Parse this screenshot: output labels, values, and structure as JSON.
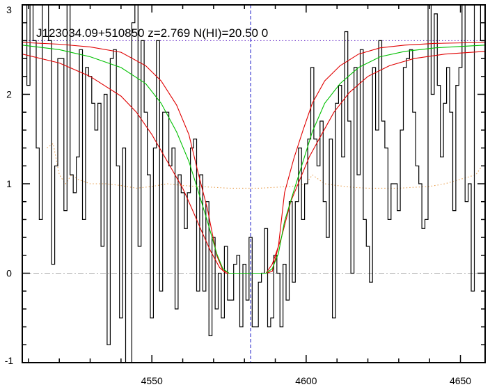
{
  "chart_data": {
    "type": "line",
    "title": "J123034.09+510850 z=2.769 N(HI)=20.50 0",
    "xlabel": "",
    "ylabel": "",
    "xlim": [
      4508,
      4658
    ],
    "ylim": [
      -1,
      3
    ],
    "x_ticks": [
      4550,
      4600,
      4650
    ],
    "y_ticks": [
      -1,
      0,
      1,
      2,
      3
    ],
    "continuum_level": 2.6,
    "zero_level": 0,
    "line_center": 4582,
    "series": [
      {
        "role": "flux",
        "style": "step",
        "color": "#000000",
        "x": [
          4509.0,
          4510.0,
          4511.0,
          4512.0,
          4513.0,
          4514.0,
          4515.0,
          4516.0,
          4517.0,
          4518.0,
          4519.0,
          4520.0,
          4521.0,
          4522.0,
          4523.0,
          4524.0,
          4525.0,
          4526.0,
          4527.0,
          4528.0,
          4529.0,
          4530.0,
          4531.0,
          4532.0,
          4533.0,
          4534.0,
          4535.0,
          4536.0,
          4537.0,
          4538.0,
          4539.0,
          4540.0,
          4541.0,
          4542.0,
          4543.0,
          4544.0,
          4545.0,
          4546.0,
          4547.0,
          4548.0,
          4549.0,
          4550.0,
          4551.0,
          4552.0,
          4553.0,
          4554.0,
          4555.0,
          4556.0,
          4557.0,
          4558.0,
          4559.0,
          4560.0,
          4561.0,
          4562.0,
          4563.0,
          4564.0,
          4565.0,
          4566.0,
          4567.0,
          4568.0,
          4569.0,
          4570.0,
          4571.0,
          4572.0,
          4573.0,
          4574.0,
          4575.0,
          4576.0,
          4577.0,
          4578.0,
          4579.0,
          4580.0,
          4581.0,
          4582.0,
          4583.0,
          4584.0,
          4585.0,
          4586.0,
          4587.0,
          4588.0,
          4589.0,
          4590.0,
          4591.0,
          4592.0,
          4593.0,
          4594.0,
          4595.0,
          4596.0,
          4597.0,
          4598.0,
          4599.0,
          4600.0,
          4601.0,
          4602.0,
          4603.0,
          4604.0,
          4605.0,
          4606.0,
          4607.0,
          4608.0,
          4609.0,
          4610.0,
          4611.0,
          4612.0,
          4613.0,
          4614.0,
          4615.0,
          4616.0,
          4617.0,
          4618.0,
          4619.0,
          4620.0,
          4621.0,
          4622.0,
          4623.0,
          4624.0,
          4625.0,
          4626.0,
          4627.0,
          4628.0,
          4629.0,
          4630.0,
          4631.0,
          4632.0,
          4633.0,
          4634.0,
          4635.0,
          4636.0,
          4637.0,
          4638.0,
          4639.0,
          4640.0,
          4641.0,
          4642.0,
          4643.0,
          4644.0,
          4645.0,
          4646.0,
          4647.0,
          4648.0,
          4649.0,
          4650.0,
          4651.0,
          4652.0,
          4653.0,
          4654.0,
          4655.0,
          4656.0,
          4657.0
        ],
        "y": [
          3.1,
          2.1,
          3.1,
          2.6,
          1.4,
          0.6,
          3.1,
          3.1,
          2.6,
          0.1,
          1.2,
          2.4,
          2.4,
          0.7,
          3.1,
          1.1,
          0.9,
          1.3,
          2.5,
          0.6,
          2.3,
          2.2,
          1.9,
          1.6,
          1.9,
          0.3,
          2.0,
          -0.8,
          2.4,
          2.5,
          1.2,
          -0.5,
          1.4,
          -1.0,
          -1.1,
          2.8,
          3.1,
          0.3,
          2.6,
          1.8,
          1.1,
          -0.5,
          1.4,
          2.6,
          -0.2,
          1.8,
          1.8,
          1.2,
          1.4,
          -0.4,
          1.1,
          0.9,
          0.5,
          0.9,
          1.4,
          1.5,
          -0.2,
          1.1,
          -0.2,
          0.8,
          -0.7,
          0.4,
          -0.4,
          0.0,
          -0.5,
          0.3,
          -0.3,
          -0.3,
          0.1,
          0.2,
          -0.6,
          0.1,
          -0.3,
          0.4,
          -0.6,
          -0.6,
          -0.1,
          0.0,
          0.5,
          -0.6,
          -0.5,
          0.2,
          0.0,
          -0.6,
          0.1,
          -0.3,
          0.8,
          -0.1,
          0.8,
          1.4,
          0.6,
          1.0,
          1.5,
          2.3,
          1.5,
          1.2,
          1.7,
          0.8,
          0.4,
          1.5,
          -0.5,
          1.9,
          2.1,
          1.3,
          2.7,
          1.7,
          0.0,
          2.3,
          1.1,
          2.5,
          0.6,
          0.3,
          -0.1,
          2.3,
          1.6,
          2.6,
          1.7,
          1.4,
          0.6,
          1.0,
          1.0,
          0.7,
          1.6,
          2.3,
          2.4,
          2.5,
          1.8,
          1.2,
          1.0,
          0.5,
          0.6,
          3.1,
          2.0,
          2.9,
          2.1,
          1.3,
          1.9,
          2.3,
          1.8,
          0.7,
          2.1,
          2.3,
          3.1,
          0.8,
          1.0,
          -0.2,
          3.1,
          3.1,
          2.6
        ]
      },
      {
        "role": "error",
        "style": "dotted",
        "color": "#e8a050",
        "x": [
          4516,
          4518,
          4520,
          4522,
          4524,
          4526,
          4530,
          4535,
          4540,
          4545,
          4550,
          4555,
          4560,
          4565,
          4570,
          4575,
          4580,
          4585,
          4590,
          4595,
          4600,
          4602,
          4604,
          4606,
          4610,
          4615,
          4620,
          4625,
          4630,
          4635,
          4640,
          4645,
          4650,
          4655,
          4657
        ],
        "y": [
          1.4,
          1.45,
          1.1,
          1.0,
          1.1,
          1.05,
          1.0,
          1.0,
          0.98,
          0.95,
          0.97,
          1.0,
          0.98,
          0.97,
          0.96,
          0.95,
          0.95,
          0.95,
          0.96,
          0.97,
          1.0,
          1.1,
          1.05,
          1.0,
          0.98,
          0.96,
          0.95,
          0.95,
          0.95,
          0.96,
          0.97,
          1.0,
          1.05,
          1.1,
          1.2
        ]
      },
      {
        "role": "continuum",
        "style": "dotted",
        "color": "#6a30c8",
        "x": [
          4508,
          4658
        ],
        "y": [
          2.6,
          2.6
        ]
      },
      {
        "role": "zero",
        "style": "dashdot",
        "color": "#a8a8a8",
        "x": [
          4508,
          4658
        ],
        "y": [
          0,
          0
        ]
      },
      {
        "role": "model",
        "style": "solid",
        "color": "#00c000",
        "x": [
          4508,
          4520,
          4530,
          4540,
          4548,
          4553,
          4558,
          4562,
          4565,
          4568,
          4571,
          4573,
          4575,
          4577,
          4579,
          4581,
          4582,
          4583,
          4585,
          4587,
          4589,
          4591,
          4593,
          4596,
          4599,
          4602,
          4606,
          4611,
          4617,
          4624,
          4632,
          4642,
          4658
        ],
        "y": [
          2.55,
          2.5,
          2.42,
          2.3,
          2.12,
          1.9,
          1.58,
          1.25,
          0.92,
          0.58,
          0.22,
          0.05,
          0.0,
          0.0,
          0.0,
          0.0,
          0.0,
          0.0,
          0.0,
          0.0,
          0.05,
          0.22,
          0.58,
          0.92,
          1.25,
          1.58,
          1.9,
          2.12,
          2.3,
          2.42,
          2.48,
          2.52,
          2.55
        ]
      },
      {
        "role": "model_upper",
        "style": "solid",
        "color": "#e00000",
        "x": [
          4508,
          4520,
          4530,
          4540,
          4548,
          4553,
          4558,
          4562,
          4565,
          4568,
          4571,
          4573,
          4575,
          4577,
          4579,
          4581,
          4582,
          4583,
          4585,
          4587,
          4589,
          4591,
          4593,
          4596,
          4599,
          4602,
          4606,
          4611,
          4617,
          4624,
          4632,
          4642,
          4658
        ],
        "y": [
          2.58,
          2.56,
          2.53,
          2.47,
          2.32,
          2.15,
          1.88,
          1.55,
          1.12,
          0.72,
          0.2,
          0.03,
          0.0,
          0.0,
          0.0,
          0.0,
          0.0,
          0.0,
          0.0,
          0.0,
          0.02,
          0.3,
          0.9,
          1.28,
          1.6,
          1.9,
          2.15,
          2.32,
          2.45,
          2.52,
          2.55,
          2.57,
          2.58
        ]
      },
      {
        "role": "model_lower",
        "style": "solid",
        "color": "#e00000",
        "x": [
          4508,
          4520,
          4530,
          4540,
          4545,
          4550,
          4555,
          4560,
          4563,
          4566,
          4569,
          4572,
          4574,
          4576,
          4578,
          4580,
          4582,
          4583,
          4585,
          4587,
          4589,
          4592,
          4595,
          4598,
          4601,
          4605,
          4609,
          4614,
          4620,
          4627,
          4635,
          4645,
          4658
        ],
        "y": [
          2.45,
          2.35,
          2.2,
          1.98,
          1.8,
          1.55,
          1.25,
          0.95,
          0.72,
          0.48,
          0.25,
          0.06,
          0.0,
          0.0,
          0.0,
          0.0,
          0.0,
          0.0,
          0.0,
          0.0,
          0.1,
          0.4,
          0.8,
          1.05,
          1.3,
          1.55,
          1.8,
          2.02,
          2.2,
          2.32,
          2.4,
          2.45,
          2.48
        ]
      }
    ]
  }
}
